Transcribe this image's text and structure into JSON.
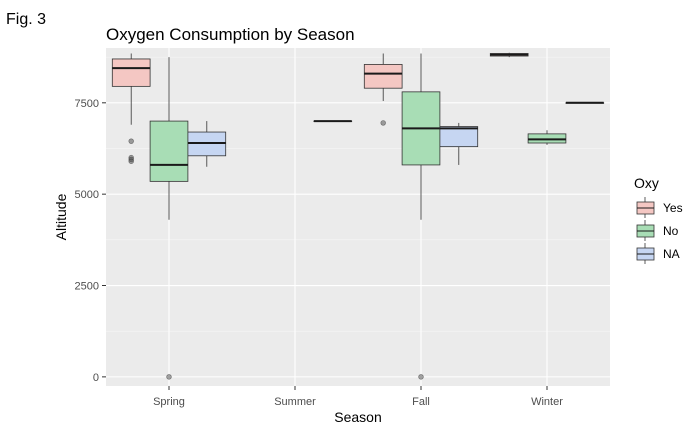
{
  "figure_label": "Fig. 3",
  "chart_data": {
    "type": "boxplot",
    "title": "Oxygen Consumption by Season",
    "xlabel": "Season",
    "ylabel": "Altitude",
    "categories": [
      "Spring",
      "Summer",
      "Fall",
      "Winter"
    ],
    "yticks": [
      0,
      2500,
      5000,
      7500
    ],
    "ylim": [
      -250,
      9000
    ],
    "grid": true,
    "legend": {
      "title": "Oxy",
      "position": "right",
      "entries": [
        {
          "label": "Yes",
          "fill": "#f4c7c3",
          "stroke": "#333333"
        },
        {
          "label": "No",
          "fill": "#a8ddb5",
          "stroke": "#333333"
        },
        {
          "label": "NA",
          "fill": "#c6d6f2",
          "stroke": "#333333"
        }
      ]
    },
    "colors": {
      "panel": "#ebebeb",
      "grid_major": "#ffffff",
      "Yes": "#f4c7c3",
      "No": "#a8ddb5",
      "NA": "#c6d6f2"
    },
    "series": [
      {
        "name": "Yes",
        "boxes": [
          {
            "category": "Spring",
            "lower_whisker": 6900,
            "q1": 7950,
            "median": 8450,
            "q3": 8700,
            "upper_whisker": 8850,
            "outliers": [
              6450,
              6000,
              5950,
              5900
            ]
          },
          {
            "category": "Fall",
            "lower_whisker": 7550,
            "q1": 7900,
            "median": 8300,
            "q3": 8550,
            "upper_whisker": 8850,
            "outliers": [
              6950
            ]
          }
        ]
      },
      {
        "name": "No",
        "boxes": [
          {
            "category": "Spring",
            "lower_whisker": 4300,
            "q1": 5350,
            "median": 5800,
            "q3": 7000,
            "upper_whisker": 8750,
            "outliers": [
              0
            ]
          },
          {
            "category": "Fall",
            "lower_whisker": 4300,
            "q1": 5800,
            "median": 6800,
            "q3": 7800,
            "upper_whisker": 8850,
            "outliers": [
              0
            ]
          },
          {
            "category": "Winter",
            "lower_whisker": 6350,
            "q1": 6400,
            "median": 6500,
            "q3": 6650,
            "upper_whisker": 6750,
            "outliers": []
          }
        ]
      },
      {
        "name": "NA",
        "boxes": [
          {
            "category": "Spring",
            "lower_whisker": 5750,
            "q1": 6050,
            "median": 6400,
            "q3": 6700,
            "upper_whisker": 7000,
            "outliers": []
          },
          {
            "category": "Summer",
            "lower_whisker": 7000,
            "q1": 7000,
            "median": 7000,
            "q3": 7000,
            "upper_whisker": 7000,
            "outliers": []
          },
          {
            "category": "Fall",
            "lower_whisker": 5800,
            "q1": 6300,
            "median": 6800,
            "q3": 6850,
            "upper_whisker": 6950,
            "outliers": []
          }
        ]
      }
    ],
    "extra_boxes": [
      {
        "series": "Yes",
        "category": "Winter",
        "lower_whisker": 8750,
        "q1": 8780,
        "median": 8820,
        "q3": 8850,
        "upper_whisker": 8870,
        "outliers": []
      },
      {
        "series": "NA",
        "category": "Winter",
        "lower_whisker": 7500,
        "q1": 7500,
        "median": 7500,
        "q3": 7500,
        "upper_whisker": 7500,
        "outliers": []
      }
    ]
  }
}
